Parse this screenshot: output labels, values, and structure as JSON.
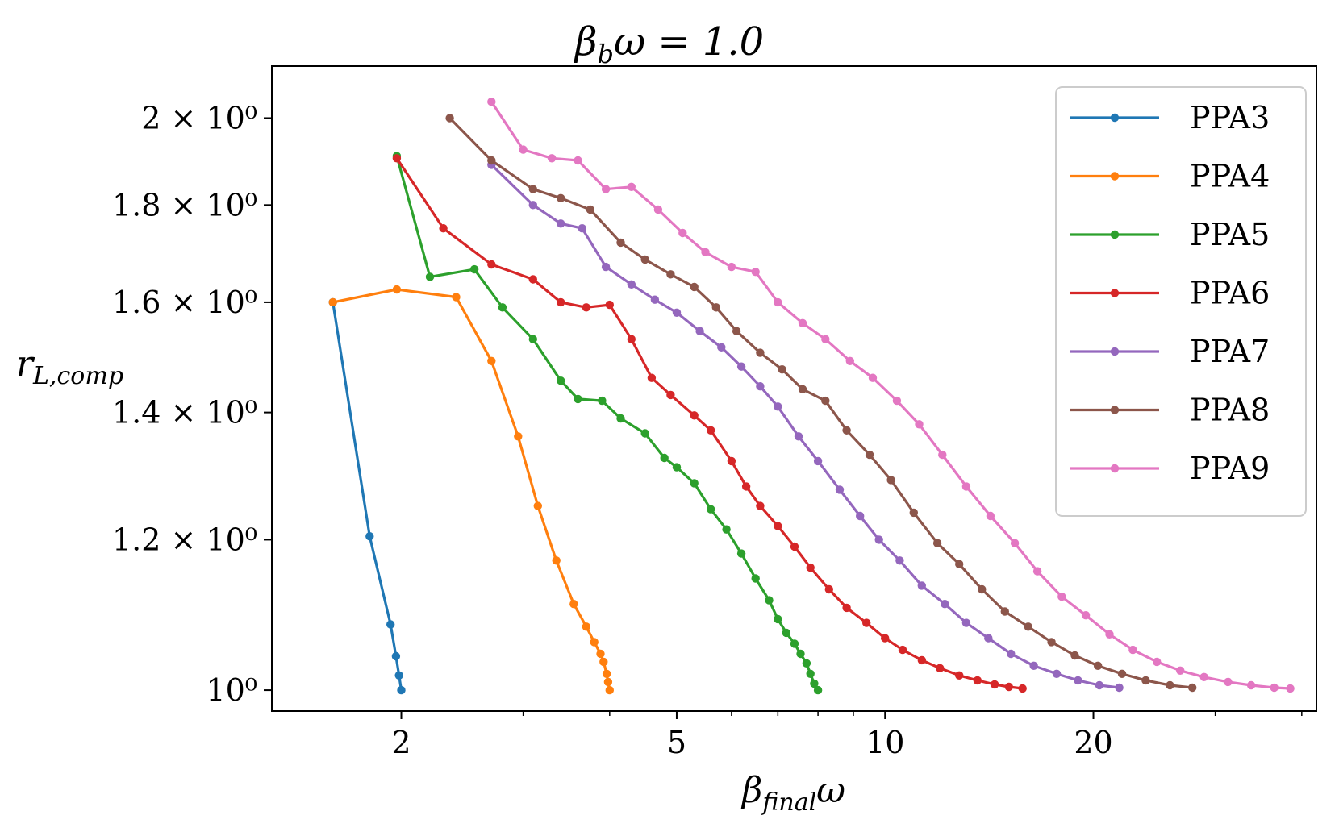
{
  "chart_data": {
    "type": "line",
    "title": "βbω = 1.0",
    "title_main": "β",
    "title_sub": "b",
    "title_rest": "ω = 1.0",
    "xlabel_main": "β",
    "xlabel_sub": "final",
    "xlabel_rest": "ω",
    "ylabel_main": "r",
    "ylabel_sub": "L,comp",
    "x_scale": "log",
    "y_scale": "log",
    "xlim": [
      1.3,
      42
    ],
    "ylim": [
      0.975,
      2.13
    ],
    "x_ticks": [
      {
        "value": 2,
        "label": "2"
      },
      {
        "value": 5,
        "label": "5"
      },
      {
        "value": 10,
        "label": "10"
      },
      {
        "value": 20,
        "label": "20"
      }
    ],
    "x_minor_ticks": [
      3,
      4,
      6,
      7,
      8,
      9,
      30,
      40
    ],
    "y_ticks": [
      {
        "value": 1.0,
        "label": "10⁰"
      },
      {
        "value": 1.2,
        "label": "1.2 × 10⁰"
      },
      {
        "value": 1.4,
        "label": "1.4 × 10⁰"
      },
      {
        "value": 1.6,
        "label": "1.6 × 10⁰"
      },
      {
        "value": 1.8,
        "label": "1.8 × 10⁰"
      },
      {
        "value": 2.0,
        "label": "2 × 10⁰"
      }
    ],
    "grid": false,
    "legend_position": "top-right",
    "series": [
      {
        "name": "PPA3",
        "color": "#1f77b4",
        "x": [
          1.593,
          1.8,
          1.93,
          1.965,
          1.985,
          2.0
        ],
        "y": [
          1.6,
          1.205,
          1.083,
          1.042,
          1.018,
          1.0
        ]
      },
      {
        "name": "PPA4",
        "color": "#ff7f0e",
        "x": [
          1.593,
          1.97,
          2.4,
          2.7,
          2.95,
          3.15,
          3.35,
          3.55,
          3.7,
          3.8,
          3.88,
          3.92,
          3.96,
          3.98,
          4.0
        ],
        "y": [
          1.6,
          1.625,
          1.61,
          1.49,
          1.36,
          1.25,
          1.17,
          1.11,
          1.08,
          1.06,
          1.045,
          1.035,
          1.02,
          1.01,
          1.0
        ]
      },
      {
        "name": "PPA5",
        "color": "#2ca02c",
        "x": [
          1.97,
          2.2,
          2.55,
          2.8,
          3.1,
          3.4,
          3.6,
          3.9,
          4.15,
          4.5,
          4.8,
          5.0,
          5.3,
          5.6,
          5.9,
          6.2,
          6.5,
          6.8,
          7.0,
          7.2,
          7.4,
          7.55,
          7.7,
          7.8,
          7.9,
          8.0
        ],
        "y": [
          1.91,
          1.65,
          1.665,
          1.59,
          1.53,
          1.455,
          1.423,
          1.42,
          1.39,
          1.365,
          1.325,
          1.31,
          1.285,
          1.245,
          1.215,
          1.18,
          1.145,
          1.115,
          1.09,
          1.072,
          1.058,
          1.045,
          1.033,
          1.02,
          1.008,
          1.0
        ]
      },
      {
        "name": "PPA6",
        "color": "#d62728",
        "x": [
          1.97,
          2.3,
          2.7,
          3.1,
          3.4,
          3.7,
          4.0,
          4.3,
          4.6,
          4.9,
          5.3,
          5.6,
          6.0,
          6.3,
          6.6,
          7.0,
          7.4,
          7.8,
          8.3,
          8.8,
          9.4,
          10.0,
          10.6,
          11.3,
          12.0,
          12.8,
          13.6,
          14.4,
          15.1,
          15.8
        ],
        "y": [
          1.905,
          1.75,
          1.675,
          1.645,
          1.6,
          1.59,
          1.595,
          1.53,
          1.46,
          1.43,
          1.395,
          1.37,
          1.32,
          1.28,
          1.25,
          1.22,
          1.19,
          1.16,
          1.13,
          1.105,
          1.085,
          1.065,
          1.05,
          1.037,
          1.027,
          1.018,
          1.012,
          1.007,
          1.004,
          1.002
        ]
      },
      {
        "name": "PPA7",
        "color": "#9467bd",
        "x": [
          2.7,
          3.1,
          3.4,
          3.65,
          3.95,
          4.3,
          4.65,
          5.0,
          5.4,
          5.8,
          6.2,
          6.6,
          7.0,
          7.5,
          8.0,
          8.6,
          9.2,
          9.8,
          10.5,
          11.3,
          12.2,
          13.1,
          14.1,
          15.2,
          16.4,
          17.7,
          19.0,
          20.4,
          21.8
        ],
        "y": [
          1.89,
          1.8,
          1.76,
          1.75,
          1.67,
          1.635,
          1.605,
          1.58,
          1.545,
          1.515,
          1.48,
          1.445,
          1.41,
          1.36,
          1.32,
          1.275,
          1.235,
          1.2,
          1.17,
          1.135,
          1.11,
          1.085,
          1.065,
          1.045,
          1.03,
          1.02,
          1.012,
          1.006,
          1.003
        ]
      },
      {
        "name": "PPA8",
        "color": "#8c564b",
        "x": [
          2.35,
          2.7,
          3.1,
          3.4,
          3.75,
          4.15,
          4.5,
          4.9,
          5.3,
          5.7,
          6.1,
          6.6,
          7.1,
          7.6,
          8.2,
          8.8,
          9.5,
          10.2,
          11.0,
          11.9,
          12.8,
          13.8,
          14.9,
          16.1,
          17.4,
          18.8,
          20.3,
          22.0,
          23.8,
          25.8,
          27.8
        ],
        "y": [
          2.0,
          1.9,
          1.835,
          1.815,
          1.79,
          1.72,
          1.685,
          1.655,
          1.63,
          1.59,
          1.545,
          1.505,
          1.475,
          1.44,
          1.42,
          1.37,
          1.33,
          1.29,
          1.24,
          1.195,
          1.165,
          1.13,
          1.1,
          1.08,
          1.06,
          1.043,
          1.03,
          1.02,
          1.012,
          1.006,
          1.003
        ]
      },
      {
        "name": "PPA9",
        "color": "#e377c2",
        "x": [
          2.7,
          3.0,
          3.3,
          3.6,
          3.95,
          4.3,
          4.7,
          5.1,
          5.5,
          6.0,
          6.5,
          7.0,
          7.6,
          8.2,
          8.9,
          9.6,
          10.4,
          11.2,
          12.1,
          13.1,
          14.2,
          15.4,
          16.6,
          18.0,
          19.5,
          21.1,
          22.8,
          24.7,
          26.7,
          28.9,
          31.3,
          33.8,
          36.5,
          38.5
        ],
        "y": [
          2.04,
          1.925,
          1.905,
          1.9,
          1.835,
          1.84,
          1.79,
          1.74,
          1.7,
          1.67,
          1.66,
          1.6,
          1.56,
          1.53,
          1.49,
          1.46,
          1.42,
          1.38,
          1.33,
          1.28,
          1.235,
          1.195,
          1.155,
          1.12,
          1.095,
          1.07,
          1.05,
          1.035,
          1.024,
          1.016,
          1.01,
          1.006,
          1.003,
          1.002
        ]
      }
    ]
  }
}
